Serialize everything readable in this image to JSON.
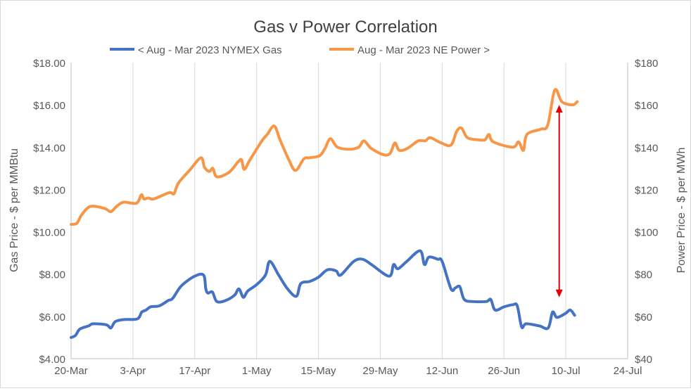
{
  "chart_data": {
    "type": "line",
    "title": "Gas v Power Correlation",
    "xlabel": "",
    "ylabel_left": "Gas Price - $ per MMBtu",
    "ylabel_right": "Power Price - $ per MWh",
    "x_unit": "days since 20-Mar",
    "xlim": [
      0,
      126
    ],
    "x_ticks": [
      {
        "label": "20-Mar",
        "day": 0
      },
      {
        "label": "3-Apr",
        "day": 14
      },
      {
        "label": "17-Apr",
        "day": 28
      },
      {
        "label": "1-May",
        "day": 42
      },
      {
        "label": "15-May",
        "day": 56
      },
      {
        "label": "29-May",
        "day": 70
      },
      {
        "label": "12-Jun",
        "day": 84
      },
      {
        "label": "26-Jun",
        "day": 98
      },
      {
        "label": "10-Jul",
        "day": 112
      },
      {
        "label": "24-Jul",
        "day": 126
      }
    ],
    "ylim_left": [
      4,
      18
    ],
    "y_ticks_left": [
      "$4.00",
      "$6.00",
      "$8.00",
      "$10.00",
      "$12.00",
      "$14.00",
      "$16.00",
      "$18.00"
    ],
    "ylim_right": [
      40,
      180
    ],
    "y_ticks_right": [
      "$40",
      "$60",
      "$80",
      "$100",
      "$120",
      "$140",
      "$160",
      "$180"
    ],
    "grid": "vertical",
    "legend_position": "top",
    "series": [
      {
        "name": "< Aug - Mar 2023 NYMEX Gas",
        "axis": "left",
        "color": "#4472c4",
        "x": [
          0,
          1,
          2,
          4,
          5,
          8,
          9,
          10,
          12,
          15,
          16,
          17,
          18,
          20,
          22,
          23,
          25,
          28,
          30,
          30.5,
          31,
          32,
          33,
          35,
          37,
          38,
          39,
          40,
          42,
          44,
          45,
          47,
          49,
          51,
          52,
          54,
          56,
          58,
          60,
          61,
          64,
          66,
          68,
          72,
          73,
          74,
          76,
          79,
          80,
          81,
          83,
          84,
          86,
          87,
          88,
          89,
          91,
          94,
          95,
          96,
          98,
          100,
          101,
          102,
          103,
          106,
          108,
          109,
          110,
          112,
          113,
          114
        ],
        "y": [
          5.0,
          5.1,
          5.4,
          5.55,
          5.65,
          5.6,
          5.45,
          5.75,
          5.85,
          5.88,
          6.2,
          6.3,
          6.45,
          6.5,
          6.75,
          6.85,
          7.45,
          7.9,
          7.95,
          7.3,
          7.1,
          7.15,
          6.7,
          6.75,
          7.0,
          7.3,
          6.9,
          7.2,
          7.5,
          7.95,
          8.6,
          7.95,
          7.3,
          6.95,
          7.55,
          7.65,
          7.85,
          8.2,
          8.15,
          7.95,
          8.6,
          8.7,
          8.45,
          7.9,
          8.45,
          8.25,
          8.6,
          9.1,
          8.45,
          8.8,
          8.7,
          8.6,
          7.3,
          7.35,
          7.4,
          6.8,
          6.7,
          6.7,
          6.8,
          6.3,
          6.45,
          6.55,
          6.5,
          5.5,
          5.65,
          5.55,
          5.45,
          6.2,
          5.95,
          6.15,
          6.3,
          6.05
        ]
      },
      {
        "name": "Aug - Mar 2023 NE Power >",
        "axis": "right",
        "color": "#f79646",
        "x": [
          0,
          1.3,
          2.4,
          4.4,
          7.6,
          9,
          10.3,
          11.9,
          14.8,
          15.9,
          16.5,
          17.5,
          18.7,
          22.2,
          23.3,
          24.3,
          27,
          29.4,
          30.2,
          31.3,
          32.1,
          33,
          35.7,
          37.8,
          38.6,
          39.2,
          40.5,
          43.2,
          44.4,
          46,
          47.3,
          49.2,
          50.8,
          52.7,
          54,
          56.3,
          57.5,
          58.7,
          60.3,
          63,
          65.1,
          66.3,
          67.9,
          70.6,
          72.2,
          73.3,
          74.3,
          76.2,
          78.6,
          80.2,
          81.3,
          83.8,
          86,
          87.3,
          88.4,
          89.7,
          92.1,
          93.7,
          94.6,
          95.6,
          100,
          101.3,
          102.4,
          103.2,
          106.3,
          107.9,
          109.5,
          111.1,
          113.5,
          114.6
        ],
        "y": [
          103.5,
          104,
          108,
          112,
          111,
          109.5,
          112,
          114,
          113.5,
          117.5,
          115.5,
          116,
          115.5,
          118.5,
          118,
          123,
          129.5,
          135,
          130.5,
          128.5,
          130,
          126,
          128,
          133,
          134,
          129.5,
          134,
          143,
          146,
          150,
          143.5,
          134.5,
          129,
          134.5,
          135,
          136,
          139.5,
          144,
          140,
          139,
          140,
          143,
          139.5,
          136.5,
          137,
          142,
          138.5,
          139.5,
          143,
          143,
          144.5,
          142,
          141,
          147.5,
          149,
          144.5,
          143.5,
          143.5,
          146,
          142.5,
          140,
          142.5,
          138.5,
          146,
          148.5,
          150.5,
          167,
          161.5,
          160,
          161.5
        ]
      }
    ],
    "annotations": [
      {
        "type": "double-arrow",
        "color": "#e00000",
        "day": 110.5,
        "y_top_left_axis": 16.0,
        "y_bottom_left_axis": 6.9
      }
    ]
  }
}
